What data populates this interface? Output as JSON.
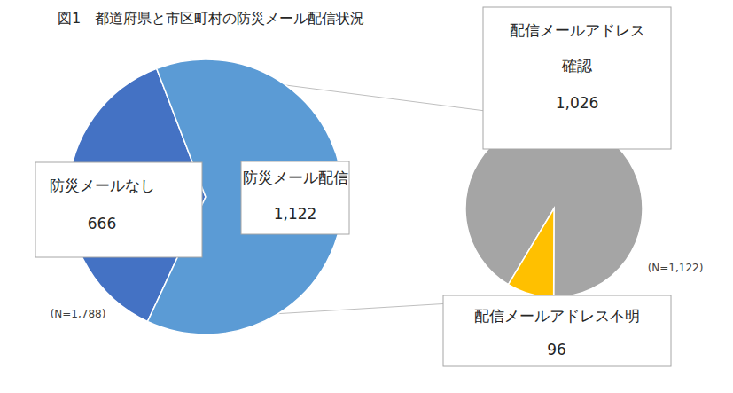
{
  "chart_data": [
    {
      "type": "pie",
      "title": "図1　都道府県と市区町村の防災メール配信状況",
      "annotations": [
        "(N=1,788)"
      ],
      "categories": [
        "防災メールなし",
        "防災メール配信"
      ],
      "values": [
        666,
        1122
      ],
      "value_labels": [
        "666",
        "1,122"
      ],
      "colors": [
        "#4472c4",
        "#5b9bd5"
      ],
      "data_labels": true
    },
    {
      "type": "pie",
      "annotations": [
        "(N=1,122)"
      ],
      "categories": [
        "配信メールアドレス確認",
        "配信メールアドレス不明"
      ],
      "values": [
        1026,
        96
      ],
      "value_labels": [
        "1,026",
        "96"
      ],
      "colors": [
        "#a5a5a5",
        "#ffc000"
      ],
      "data_labels": true
    }
  ]
}
